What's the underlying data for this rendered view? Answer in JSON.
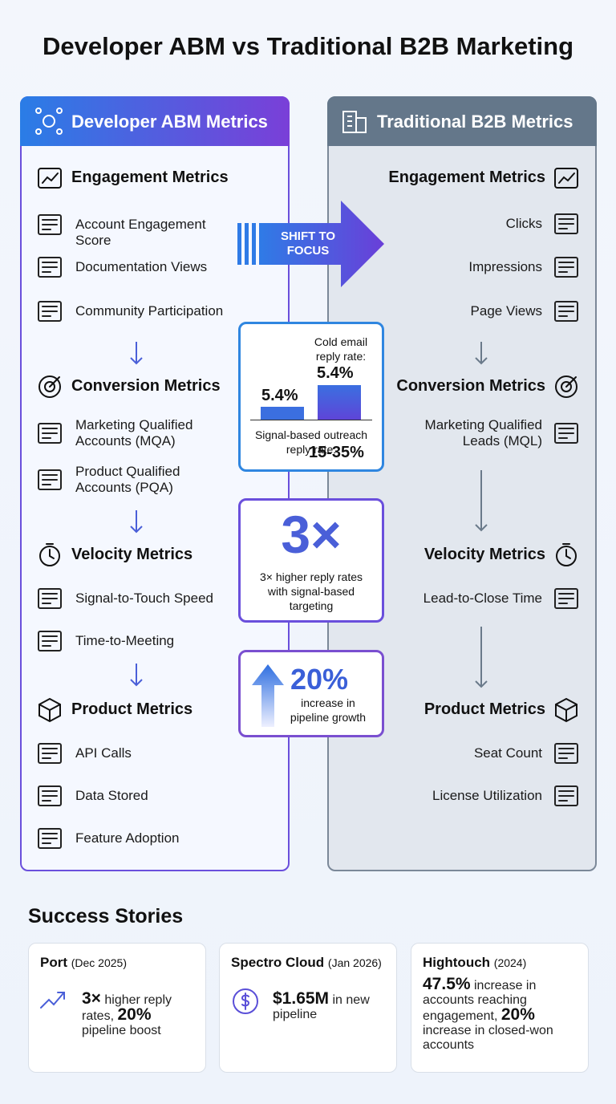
{
  "title": "Developer ABM vs Traditional B2B Marketing",
  "left": {
    "header": "Developer ABM Metrics",
    "sections": [
      {
        "heading": "Engagement Metrics",
        "items": [
          "Account Engagement Score",
          "Documentation Views",
          "Community Participation"
        ]
      },
      {
        "heading": "Conversion Metrics",
        "items": [
          "Marketing Qualified Accounts (MQA)",
          "Product Qualified Accounts (PQA)"
        ]
      },
      {
        "heading": "Velocity Metrics",
        "items": [
          "Signal-to-Touch Speed",
          "Time-to-Meeting"
        ]
      },
      {
        "heading": "Product Metrics",
        "items": [
          "API Calls",
          "Data Stored",
          "Feature Adoption"
        ]
      }
    ]
  },
  "right": {
    "header": "Traditional B2B Metrics",
    "sections": [
      {
        "heading": "Engagement Metrics",
        "items": [
          "Clicks",
          "Impressions",
          "Page Views"
        ]
      },
      {
        "heading": "Conversion Metrics",
        "items": [
          "Marketing Qualified Leads (MQL)"
        ]
      },
      {
        "heading": "Velocity Metrics",
        "items": [
          "Lead-to-Close Time"
        ]
      },
      {
        "heading": "Product Metrics",
        "items": [
          "Seat Count",
          "License Utilization"
        ]
      }
    ]
  },
  "center": {
    "shift": "SHIFT TO FOCUS",
    "reply": {
      "cold_label": "Cold email reply rate:",
      "cold_value": "5.4%",
      "bar_label": "5.4%",
      "signal_label": "Signal-based outreach reply rate:",
      "signal_value": "15-35%"
    },
    "multiplier": {
      "value": "3×",
      "text": "3× higher reply rates with signal-based targeting"
    },
    "growth": {
      "value": "20%",
      "text": "increase in pipeline growth"
    }
  },
  "stories": {
    "title": "Success Stories",
    "cards": [
      {
        "company": "Port",
        "date": "(Dec 2025)",
        "body": [
          {
            "b": "3×"
          },
          {
            "t": " higher reply rates, "
          },
          {
            "b": "20%"
          },
          {
            "t": " pipeline boost"
          }
        ]
      },
      {
        "company": "Spectro Cloud",
        "date": "(Jan 2026)",
        "body": [
          {
            "b": "$1.65M"
          },
          {
            "t": " in new pipeline"
          }
        ]
      },
      {
        "company": "Hightouch",
        "date": "(2024)",
        "body": [
          {
            "b": "47.5%"
          },
          {
            "t": " increase in accounts reaching engagement, "
          },
          {
            "b": "20%"
          },
          {
            "t": " increase in closed-won accounts"
          }
        ]
      }
    ]
  }
}
